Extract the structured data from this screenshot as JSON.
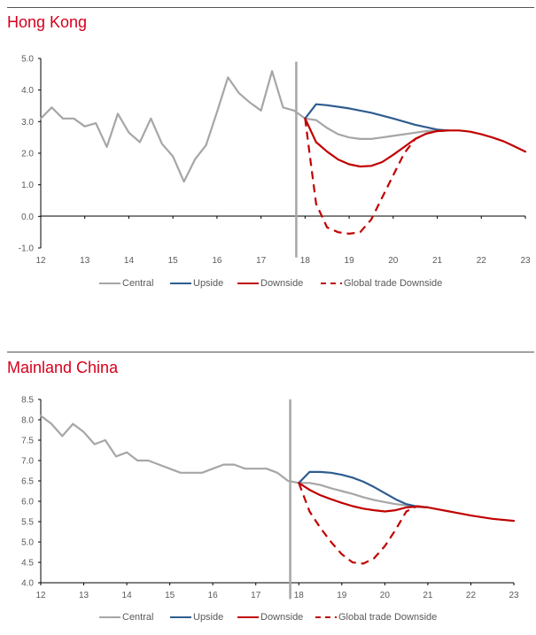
{
  "colors": {
    "accent_title": "#d7001c",
    "central": "#a6a6a6",
    "upside": "#2e5c8f",
    "downside": "#c00000",
    "global_trade": "#c00000",
    "vline": "#a6a6a6"
  },
  "chart_data": [
    {
      "type": "line",
      "title": "Hong Kong",
      "ylim": [
        -1.0,
        5.0
      ],
      "yticks": [
        "5.0",
        "4.0",
        "3.0",
        "2.0",
        "1.0",
        "0.0",
        "-1.0"
      ],
      "ytick_values": [
        5,
        4,
        3,
        2,
        1,
        0,
        -1
      ],
      "xlim": [
        12,
        23
      ],
      "xticks": [
        "12",
        "13",
        "14",
        "15",
        "16",
        "17",
        "18",
        "19",
        "20",
        "21",
        "22",
        "23"
      ],
      "xtick_values": [
        12,
        13,
        14,
        15,
        16,
        17,
        18,
        19,
        20,
        21,
        22,
        23
      ],
      "vline": {
        "x": 17.8,
        "y_top": 4.9,
        "y_bottom": -1.3
      },
      "legend_position": "bottom",
      "series": [
        {
          "name": "Central",
          "style": "solid",
          "color_key": "central",
          "x": [
            12,
            12.25,
            12.5,
            12.75,
            13,
            13.25,
            13.5,
            13.75,
            14,
            14.25,
            14.5,
            14.75,
            15,
            15.25,
            15.5,
            15.75,
            16,
            16.25,
            16.5,
            16.75,
            17,
            17.25,
            17.5,
            17.75,
            18,
            18.25,
            18.5,
            18.75,
            19,
            19.25,
            19.5,
            19.75,
            20,
            20.25,
            20.5,
            20.75,
            21,
            21.25
          ],
          "y": [
            3.1,
            3.45,
            3.1,
            3.1,
            2.85,
            2.95,
            2.2,
            3.25,
            2.65,
            2.35,
            3.1,
            2.3,
            1.9,
            1.1,
            1.8,
            2.25,
            3.3,
            4.4,
            3.9,
            3.6,
            3.35,
            4.6,
            3.45,
            3.35,
            3.1,
            3.05,
            2.8,
            2.6,
            2.5,
            2.45,
            2.45,
            2.5,
            2.55,
            2.6,
            2.65,
            2.7,
            2.72,
            2.72
          ]
        },
        {
          "name": "Upside",
          "style": "solid",
          "color_key": "upside",
          "x": [
            18,
            18.25,
            18.5,
            19,
            19.5,
            20,
            20.5,
            21,
            21.25
          ],
          "y": [
            3.1,
            3.55,
            3.52,
            3.42,
            3.28,
            3.1,
            2.9,
            2.75,
            2.72
          ]
        },
        {
          "name": "Downside",
          "style": "solid",
          "color_key": "downside",
          "x": [
            18,
            18.25,
            18.5,
            18.75,
            19,
            19.25,
            19.5,
            19.75,
            20,
            20.25,
            20.5,
            20.75,
            21,
            21.25,
            21.5,
            21.75,
            22,
            22.25,
            22.5,
            22.75,
            23
          ],
          "y": [
            3.1,
            2.35,
            2.05,
            1.8,
            1.65,
            1.58,
            1.6,
            1.72,
            1.95,
            2.2,
            2.45,
            2.62,
            2.7,
            2.72,
            2.72,
            2.68,
            2.6,
            2.5,
            2.38,
            2.22,
            2.05
          ]
        },
        {
          "name": "Global trade Downside",
          "style": "dashed",
          "color_key": "global_trade",
          "x": [
            18,
            18.12,
            18.25,
            18.5,
            18.75,
            19,
            19.25,
            19.5,
            19.75,
            20,
            20.25,
            20.5,
            20.75,
            21,
            21.25
          ],
          "y": [
            3.1,
            1.8,
            0.4,
            -0.35,
            -0.5,
            -0.55,
            -0.5,
            -0.1,
            0.6,
            1.3,
            2.0,
            2.45,
            2.62,
            2.7,
            2.72
          ]
        }
      ]
    },
    {
      "type": "line",
      "title": "Mainland China",
      "ylim": [
        4.0,
        8.5
      ],
      "yticks": [
        "8.5",
        "8.0",
        "7.5",
        "7.0",
        "6.5",
        "6.0",
        "5.5",
        "5.0",
        "4.5",
        "4.0"
      ],
      "ytick_values": [
        8.5,
        8.0,
        7.5,
        7.0,
        6.5,
        6.0,
        5.5,
        5.0,
        4.5,
        4.0
      ],
      "xlim": [
        12,
        23
      ],
      "xticks": [
        "12",
        "13",
        "14",
        "15",
        "16",
        "17",
        "18",
        "19",
        "20",
        "21",
        "22",
        "23"
      ],
      "xtick_values": [
        12,
        13,
        14,
        15,
        16,
        17,
        18,
        19,
        20,
        21,
        22,
        23
      ],
      "vline": {
        "x": 17.8,
        "y_top": 8.5,
        "y_bottom": 3.6
      },
      "legend_position": "bottom",
      "series": [
        {
          "name": "Central",
          "style": "solid",
          "color_key": "central",
          "x": [
            12,
            12.25,
            12.5,
            12.75,
            13,
            13.25,
            13.5,
            13.75,
            14,
            14.25,
            14.5,
            14.75,
            15,
            15.25,
            15.5,
            15.75,
            16,
            16.25,
            16.5,
            16.75,
            17,
            17.25,
            17.5,
            17.75,
            18,
            18.25,
            18.5,
            18.75,
            19,
            19.25,
            19.5,
            19.75,
            20,
            20.25,
            20.5,
            20.75,
            21
          ],
          "y": [
            8.1,
            7.9,
            7.6,
            7.9,
            7.7,
            7.4,
            7.5,
            7.1,
            7.2,
            7.0,
            7.0,
            6.9,
            6.8,
            6.7,
            6.7,
            6.7,
            6.8,
            6.9,
            6.9,
            6.8,
            6.8,
            6.8,
            6.7,
            6.5,
            6.45,
            6.45,
            6.4,
            6.32,
            6.25,
            6.18,
            6.1,
            6.03,
            5.98,
            5.93,
            5.9,
            5.87,
            5.85
          ]
        },
        {
          "name": "Upside",
          "style": "solid",
          "color_key": "upside",
          "x": [
            18,
            18.25,
            18.5,
            18.75,
            19,
            19.25,
            19.5,
            19.75,
            20,
            20.25,
            20.5,
            20.75,
            21
          ],
          "y": [
            6.45,
            6.72,
            6.72,
            6.7,
            6.65,
            6.58,
            6.48,
            6.35,
            6.2,
            6.05,
            5.93,
            5.87,
            5.85
          ]
        },
        {
          "name": "Downside",
          "style": "solid",
          "color_key": "downside",
          "x": [
            18,
            18.25,
            18.5,
            18.75,
            19,
            19.25,
            19.5,
            19.75,
            20,
            20.25,
            20.5,
            20.75,
            21,
            21.5,
            22,
            22.5,
            23
          ],
          "y": [
            6.45,
            6.28,
            6.15,
            6.05,
            5.96,
            5.88,
            5.82,
            5.78,
            5.75,
            5.78,
            5.85,
            5.87,
            5.85,
            5.75,
            5.65,
            5.57,
            5.52
          ]
        },
        {
          "name": "Global trade Downside",
          "style": "dashed",
          "color_key": "global_trade",
          "x": [
            18,
            18.25,
            18.5,
            18.75,
            19,
            19.25,
            19.5,
            19.75,
            20,
            20.25,
            20.5,
            20.75,
            21
          ],
          "y": [
            6.45,
            5.75,
            5.35,
            5.0,
            4.7,
            4.5,
            4.47,
            4.6,
            4.9,
            5.3,
            5.75,
            5.88,
            5.85
          ]
        }
      ]
    }
  ]
}
